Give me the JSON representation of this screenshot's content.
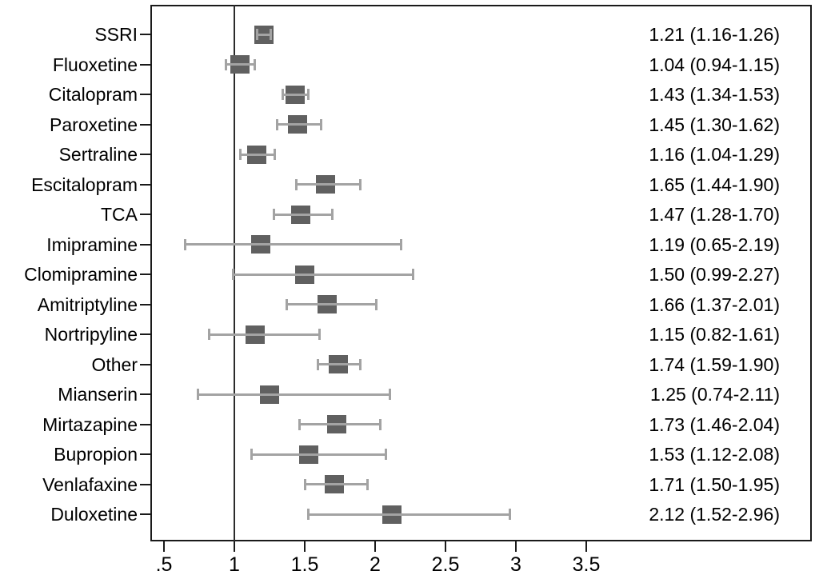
{
  "chart_data": {
    "type": "scatter",
    "subtype": "forest-plot",
    "title": "",
    "xlabel": "",
    "ylabel": "",
    "grid": false,
    "legend": "none",
    "xlim": [
      0.4,
      5.1
    ],
    "x_tick_labels": [
      ".5",
      "1",
      "1.5",
      "2",
      "2.5",
      "3",
      "3.5"
    ],
    "x_tick_values": [
      0.5,
      1,
      1.5,
      2,
      2.5,
      3,
      3.5
    ],
    "reference_line_x": 1,
    "rows": [
      {
        "label": "SSRI",
        "estimate": 1.21,
        "ci_low": 1.16,
        "ci_high": 1.26,
        "display": "1.21 (1.16-1.26)"
      },
      {
        "label": "Fluoxetine",
        "estimate": 1.04,
        "ci_low": 0.94,
        "ci_high": 1.15,
        "display": "1.04 (0.94-1.15)"
      },
      {
        "label": "Citalopram",
        "estimate": 1.43,
        "ci_low": 1.34,
        "ci_high": 1.53,
        "display": "1.43 (1.34-1.53)"
      },
      {
        "label": "Paroxetine",
        "estimate": 1.45,
        "ci_low": 1.3,
        "ci_high": 1.62,
        "display": "1.45 (1.30-1.62)"
      },
      {
        "label": "Sertraline",
        "estimate": 1.16,
        "ci_low": 1.04,
        "ci_high": 1.29,
        "display": "1.16 (1.04-1.29)"
      },
      {
        "label": "Escitalopram",
        "estimate": 1.65,
        "ci_low": 1.44,
        "ci_high": 1.9,
        "display": "1.65 (1.44-1.90)"
      },
      {
        "label": "TCA",
        "estimate": 1.47,
        "ci_low": 1.28,
        "ci_high": 1.7,
        "display": "1.47 (1.28-1.70)"
      },
      {
        "label": "Imipramine",
        "estimate": 1.19,
        "ci_low": 0.65,
        "ci_high": 2.19,
        "display": "1.19 (0.65-2.19)"
      },
      {
        "label": "Clomipramine",
        "estimate": 1.5,
        "ci_low": 0.99,
        "ci_high": 2.27,
        "display": "1.50 (0.99-2.27)"
      },
      {
        "label": "Amitriptyline",
        "estimate": 1.66,
        "ci_low": 1.37,
        "ci_high": 2.01,
        "display": "1.66 (1.37-2.01)"
      },
      {
        "label": "Nortripyline",
        "estimate": 1.15,
        "ci_low": 0.82,
        "ci_high": 1.61,
        "display": "1.15 (0.82-1.61)"
      },
      {
        "label": "Other",
        "estimate": 1.74,
        "ci_low": 1.59,
        "ci_high": 1.9,
        "display": "1.74 (1.59-1.90)"
      },
      {
        "label": "Mianserin",
        "estimate": 1.25,
        "ci_low": 0.74,
        "ci_high": 2.11,
        "display": "1.25 (0.74-2.11)"
      },
      {
        "label": "Mirtazapine",
        "estimate": 1.73,
        "ci_low": 1.46,
        "ci_high": 2.04,
        "display": "1.73 (1.46-2.04)"
      },
      {
        "label": "Bupropion",
        "estimate": 1.53,
        "ci_low": 1.12,
        "ci_high": 2.08,
        "display": "1.53 (1.12-2.08)"
      },
      {
        "label": "Venlafaxine",
        "estimate": 1.71,
        "ci_low": 1.5,
        "ci_high": 1.95,
        "display": "1.71 (1.50-1.95)"
      },
      {
        "label": "Duloxetine",
        "estimate": 2.12,
        "ci_low": 1.52,
        "ci_high": 2.96,
        "display": "2.12 (1.52-2.96)"
      }
    ],
    "colors": {
      "box": "#606060",
      "ci": "#a3a3a3",
      "axis": "#1a1a1a",
      "reference_line": "#2b2b2b",
      "text": "#000000",
      "background": "#ffffff"
    }
  }
}
